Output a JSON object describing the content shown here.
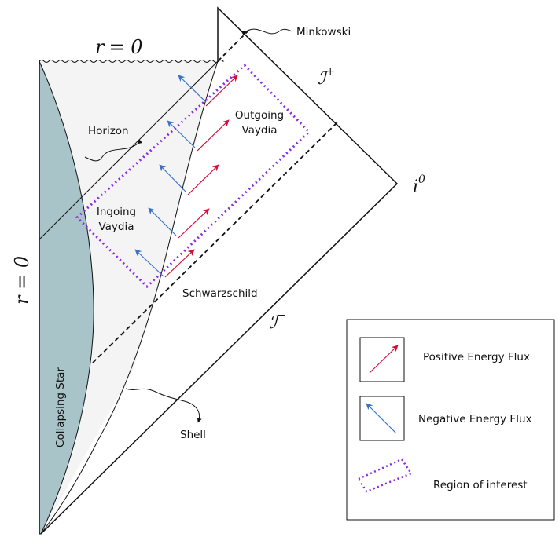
{
  "diagram": {
    "labels": {
      "r0_top_lhs": "r",
      "r0_top_eq": "= 0",
      "r0_left": "r = 0",
      "minkowski": "Minkowski",
      "scri_plus": "ℐ",
      "scri_plus_sup": "+",
      "scri_minus": "ℐ",
      "scri_minus_sup": "−",
      "i0": "i",
      "i0_sup": "0",
      "horizon": "Horizon",
      "outgoing_1": "Outgoing",
      "outgoing_2": "Vaydia",
      "ingoing_1": "Ingoing",
      "ingoing_2": "Vaydia",
      "schwarzschild": "Schwarzschild",
      "collapsing_star": "Collapsing Star",
      "shell": "Shell"
    },
    "legend": {
      "positive_flux": "Positive Energy Flux",
      "negative_flux": "Negative Energy Flux",
      "region": "Region of interest"
    },
    "colors": {
      "star_fill": "#a8c4c8",
      "interior_fill": "#f4f4f4",
      "positive_arrow": "#d0103a",
      "negative_arrow": "#3a72c8",
      "region_border": "#8a2be2",
      "line": "#111111"
    }
  }
}
